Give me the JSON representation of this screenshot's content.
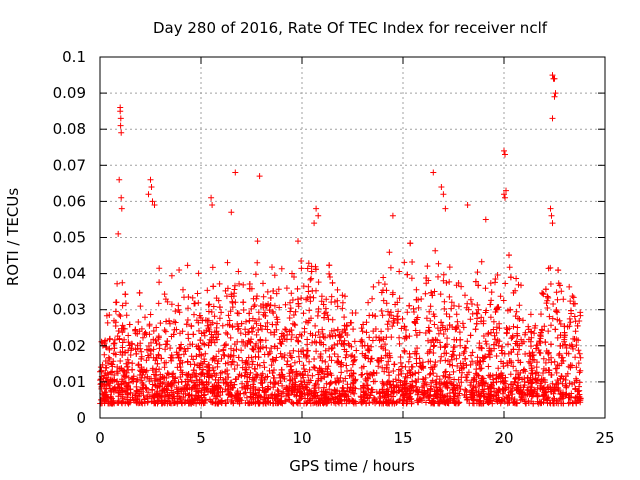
{
  "chart_data": {
    "type": "scatter",
    "title": "Day 280 of 2016, Rate Of TEC Index for receiver nclf",
    "xlabel": "GPS time / hours",
    "ylabel": "ROTI / TECUs",
    "xlim": [
      0,
      25
    ],
    "ylim": [
      0,
      0.1
    ],
    "xticks": [
      0,
      5,
      10,
      15,
      20,
      25
    ],
    "xtick_labels": [
      "0",
      "5",
      "10",
      "15",
      "20",
      "25"
    ],
    "yticks": [
      0,
      0.01,
      0.02,
      0.03,
      0.04,
      0.05,
      0.06,
      0.07,
      0.08,
      0.09,
      0.1
    ],
    "ytick_labels": [
      "0",
      "0.01",
      "0.02",
      "0.03",
      "0.04",
      "0.05",
      "0.06",
      "0.07",
      "0.08",
      "0.09",
      "0.1"
    ],
    "grid": true,
    "marker": "+",
    "color": "#ff0000",
    "data_range_x": [
      0,
      23.8
    ],
    "gap_x": [
      12.7,
      12.9
    ],
    "series": [
      {
        "name": "ROTI",
        "points": [
          [
            1.0,
            0.086
          ],
          [
            1.0,
            0.085
          ],
          [
            1.02,
            0.081
          ],
          [
            1.05,
            0.079
          ],
          [
            1.03,
            0.083
          ],
          [
            0.95,
            0.066
          ],
          [
            1.05,
            0.061
          ],
          [
            1.08,
            0.058
          ],
          [
            0.9,
            0.051
          ],
          [
            2.5,
            0.066
          ],
          [
            2.55,
            0.064
          ],
          [
            2.6,
            0.06
          ],
          [
            2.7,
            0.059
          ],
          [
            2.4,
            0.062
          ],
          [
            5.5,
            0.061
          ],
          [
            5.55,
            0.059
          ],
          [
            6.5,
            0.057
          ],
          [
            6.7,
            0.068
          ],
          [
            7.9,
            0.067
          ],
          [
            7.8,
            0.049
          ],
          [
            9.8,
            0.049
          ],
          [
            10.7,
            0.058
          ],
          [
            10.8,
            0.056
          ],
          [
            10.6,
            0.054
          ],
          [
            14.5,
            0.056
          ],
          [
            16.5,
            0.068
          ],
          [
            16.9,
            0.064
          ],
          [
            17.0,
            0.062
          ],
          [
            17.1,
            0.058
          ],
          [
            18.2,
            0.059
          ],
          [
            19.1,
            0.055
          ],
          [
            20.0,
            0.074
          ],
          [
            20.05,
            0.073
          ],
          [
            20.1,
            0.063
          ],
          [
            20.0,
            0.062
          ],
          [
            20.05,
            0.061
          ],
          [
            22.4,
            0.095
          ],
          [
            22.45,
            0.094
          ],
          [
            22.5,
            0.094
          ],
          [
            22.55,
            0.09
          ],
          [
            22.5,
            0.089
          ],
          [
            22.4,
            0.083
          ],
          [
            22.3,
            0.058
          ],
          [
            22.35,
            0.056
          ],
          [
            22.4,
            0.054
          ]
        ]
      }
    ],
    "envelope": [
      [
        0.0,
        0.03
      ],
      [
        0.5,
        0.032
      ],
      [
        1.0,
        0.045
      ],
      [
        1.5,
        0.035
      ],
      [
        2.0,
        0.038
      ],
      [
        2.5,
        0.05
      ],
      [
        3.0,
        0.04
      ],
      [
        3.5,
        0.04
      ],
      [
        4.0,
        0.045
      ],
      [
        4.5,
        0.05
      ],
      [
        5.0,
        0.04
      ],
      [
        5.5,
        0.048
      ],
      [
        6.0,
        0.045
      ],
      [
        6.5,
        0.048
      ],
      [
        7.0,
        0.04
      ],
      [
        7.5,
        0.042
      ],
      [
        8.0,
        0.045
      ],
      [
        8.5,
        0.045
      ],
      [
        9.0,
        0.047
      ],
      [
        9.5,
        0.048
      ],
      [
        10.0,
        0.05
      ],
      [
        10.5,
        0.05
      ],
      [
        11.0,
        0.045
      ],
      [
        11.5,
        0.05
      ],
      [
        12.0,
        0.04
      ],
      [
        12.5,
        0.035
      ],
      [
        13.0,
        0.035
      ],
      [
        13.5,
        0.04
      ],
      [
        14.0,
        0.045
      ],
      [
        14.5,
        0.05
      ],
      [
        15.0,
        0.045
      ],
      [
        15.5,
        0.05
      ],
      [
        16.0,
        0.045
      ],
      [
        16.5,
        0.05
      ],
      [
        17.0,
        0.05
      ],
      [
        17.5,
        0.045
      ],
      [
        18.0,
        0.042
      ],
      [
        18.5,
        0.045
      ],
      [
        19.0,
        0.045
      ],
      [
        19.5,
        0.045
      ],
      [
        20.0,
        0.048
      ],
      [
        20.5,
        0.045
      ],
      [
        21.0,
        0.042
      ],
      [
        21.5,
        0.04
      ],
      [
        22.0,
        0.045
      ],
      [
        22.5,
        0.05
      ],
      [
        23.0,
        0.045
      ],
      [
        23.5,
        0.045
      ],
      [
        23.8,
        0.04
      ]
    ]
  }
}
